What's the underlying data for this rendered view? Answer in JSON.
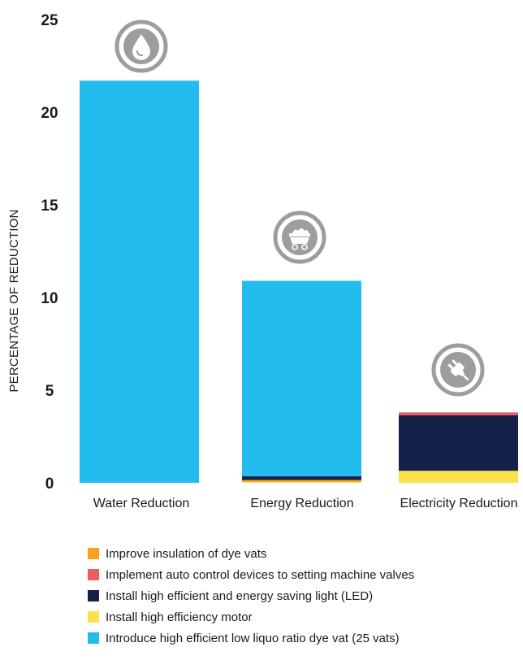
{
  "chart_data": {
    "type": "bar",
    "stacked": true,
    "ylabel": "PERCENTAGE OF REDUCTION",
    "xlabel": "",
    "ylim": [
      0,
      25
    ],
    "yticks": [
      0,
      5,
      10,
      15,
      20,
      25
    ],
    "grid": false,
    "legend_position": "bottom-left",
    "categories": [
      "Water Reduction",
      "Energy Reduction",
      "Electricity Reduction"
    ],
    "category_icons": [
      "water-drop-icon",
      "coal-cart-icon",
      "electric-plug-icon"
    ],
    "series": [
      {
        "name": "Improve insulation of dye vats",
        "color": "#f7a21b",
        "values": [
          0,
          0.1,
          0
        ]
      },
      {
        "name": "Implement auto control devices to setting machine valves",
        "color": "#ef5b5e",
        "values": [
          0,
          0,
          0.15
        ]
      },
      {
        "name": "Install high efficient and energy saving light (LED)",
        "color": "#16214a",
        "values": [
          0,
          0.2,
          3.0
        ]
      },
      {
        "name": "Install high efficiency motor",
        "color": "#fbe04a",
        "values": [
          0,
          0.05,
          0.65
        ]
      },
      {
        "name": "Introduce high efficient low liquo ratio dye vat (25 vats)",
        "color": "#22bdee",
        "values": [
          21.7,
          10.55,
          0
        ]
      }
    ],
    "stack_order_bottom_to_top": [
      "Install high efficiency motor",
      "Improve insulation of dye vats",
      "Install high efficient and energy saving light (LED)",
      "Implement auto control devices to setting machine valves",
      "Introduce high efficient low liquo ratio dye vat (25 vats)"
    ]
  }
}
